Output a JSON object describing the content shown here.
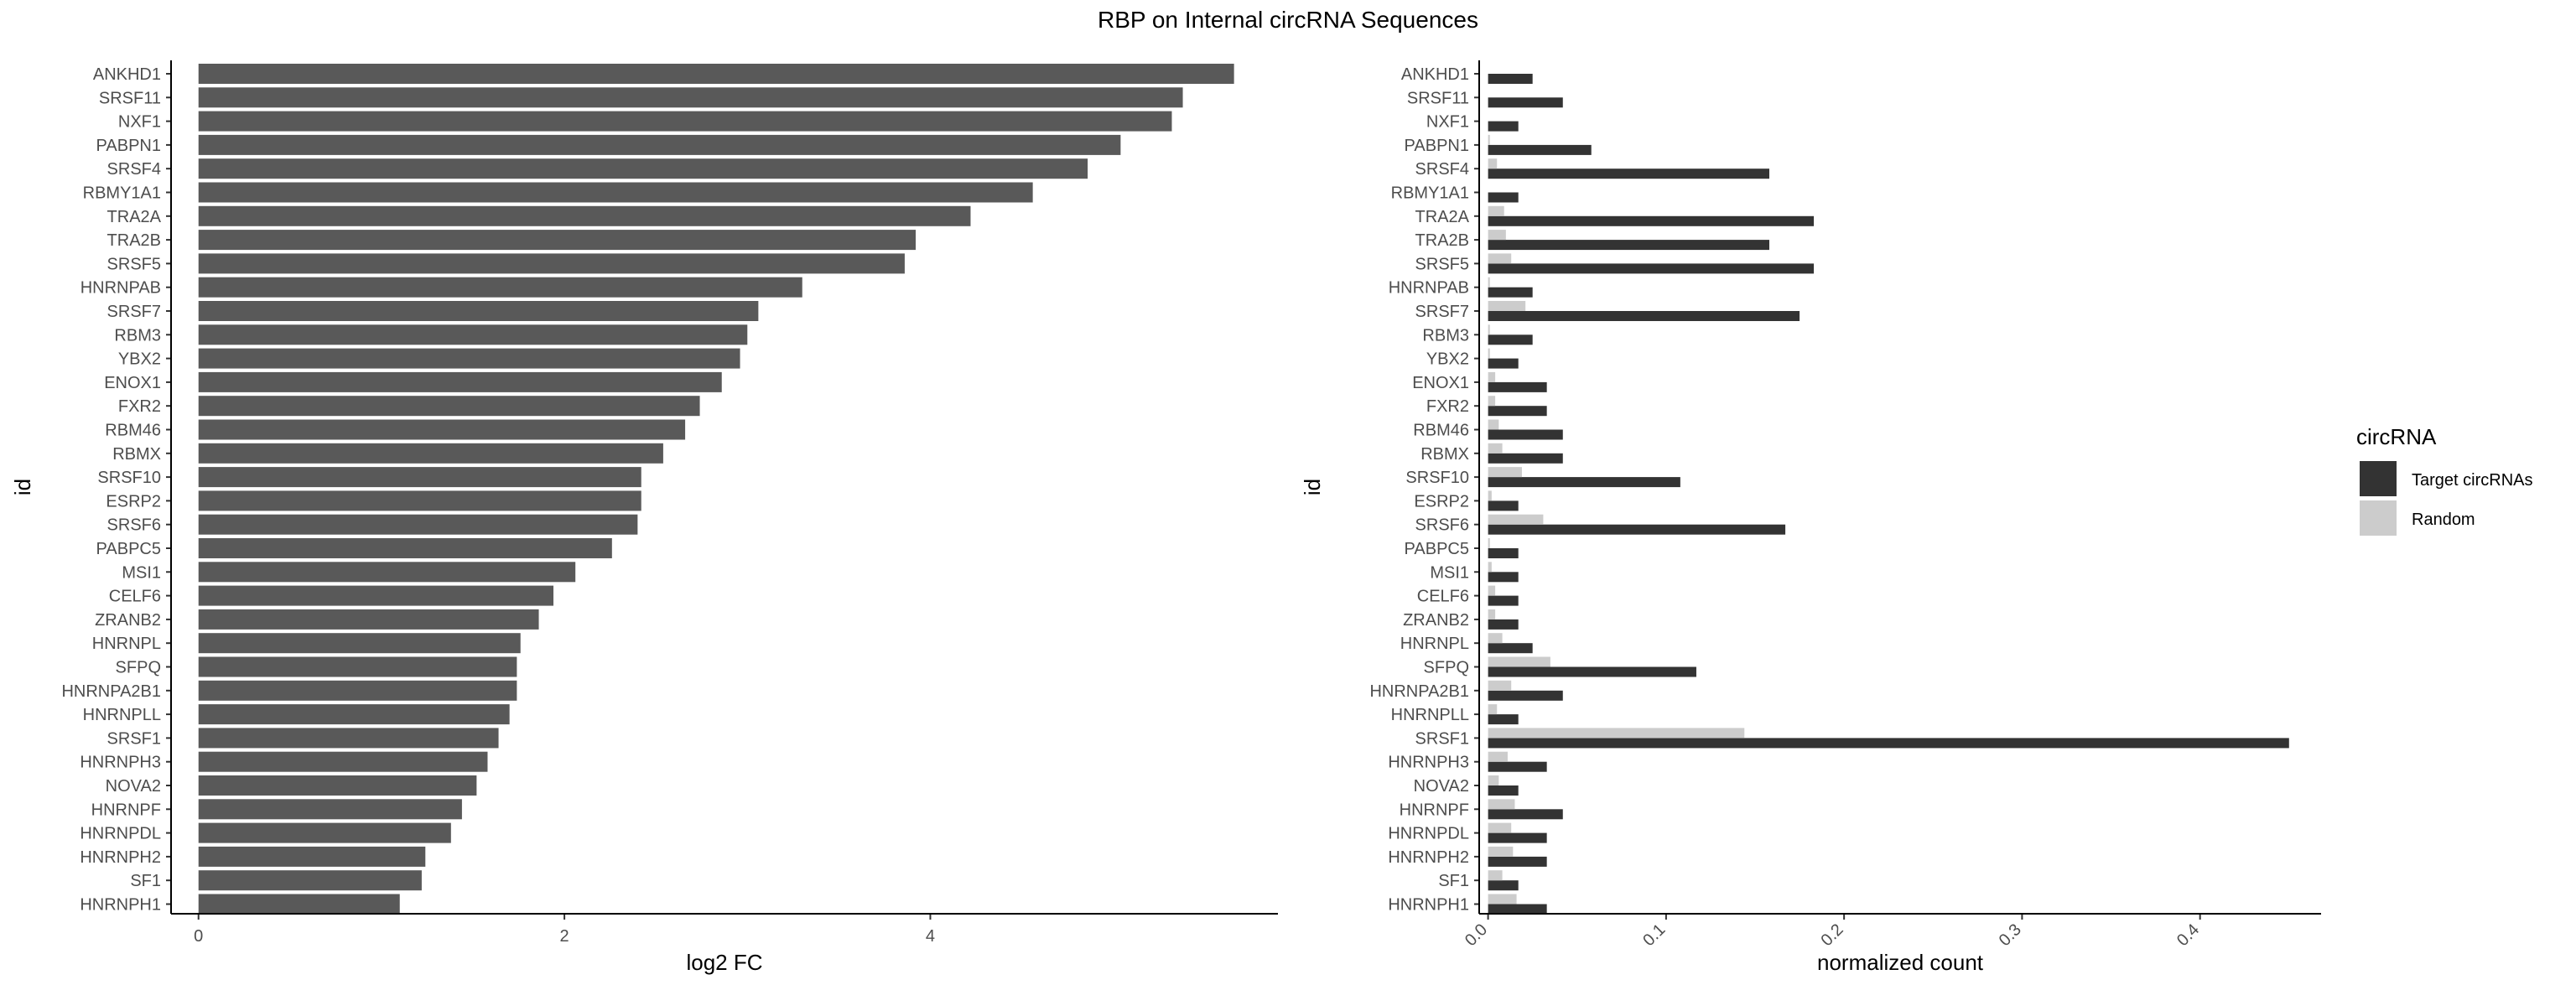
{
  "title": "RBP on Internal circRNA Sequences",
  "chart_data": [
    {
      "type": "bar",
      "orientation": "horizontal",
      "ylabel": "id",
      "xlabel": "log2 FC",
      "xlim": [
        -0.15,
        5.9
      ],
      "xticks": [
        0,
        2,
        4
      ],
      "categories": [
        "ANKHD1",
        "SRSF11",
        "NXF1",
        "PABPN1",
        "SRSF4",
        "RBMY1A1",
        "TRA2A",
        "TRA2B",
        "SRSF5",
        "HNRNPAB",
        "SRSF7",
        "RBM3",
        "YBX2",
        "ENOX1",
        "FXR2",
        "RBM46",
        "RBMX",
        "SRSF10",
        "ESRP2",
        "SRSF6",
        "PABPC5",
        "MSI1",
        "CELF6",
        "ZRANB2",
        "HNRNPL",
        "SFPQ",
        "HNRNPA2B1",
        "HNRNPLL",
        "SRSF1",
        "HNRNPH3",
        "NOVA2",
        "HNRNPF",
        "HNRNPDL",
        "HNRNPH2",
        "SF1",
        "HNRNPH1"
      ],
      "values": [
        5.66,
        5.38,
        5.32,
        5.04,
        4.86,
        4.56,
        4.22,
        3.92,
        3.86,
        3.3,
        3.06,
        3.0,
        2.96,
        2.86,
        2.74,
        2.66,
        2.54,
        2.42,
        2.42,
        2.4,
        2.26,
        2.06,
        1.94,
        1.86,
        1.76,
        1.74,
        1.74,
        1.7,
        1.64,
        1.58,
        1.52,
        1.44,
        1.38,
        1.24,
        1.22,
        1.1
      ],
      "bar_color": "#595959"
    },
    {
      "type": "bar",
      "orientation": "horizontal",
      "grouped": true,
      "ylabel": "id",
      "xlabel": "normalized count",
      "xlim": [
        -0.005,
        0.468
      ],
      "xticks": [
        0.0,
        0.1,
        0.2,
        0.3,
        0.4
      ],
      "xtick_labels": [
        "0.0",
        "0.1",
        "0.2",
        "0.3",
        "0.4"
      ],
      "categories": [
        "ANKHD1",
        "SRSF11",
        "NXF1",
        "PABPN1",
        "SRSF4",
        "RBMY1A1",
        "TRA2A",
        "TRA2B",
        "SRSF5",
        "HNRNPAB",
        "SRSF7",
        "RBM3",
        "YBX2",
        "ENOX1",
        "FXR2",
        "RBM46",
        "RBMX",
        "SRSF10",
        "ESRP2",
        "SRSF6",
        "PABPC5",
        "MSI1",
        "CELF6",
        "ZRANB2",
        "HNRNPL",
        "SFPQ",
        "HNRNPA2B1",
        "HNRNPLL",
        "SRSF1",
        "HNRNPH3",
        "NOVA2",
        "HNRNPF",
        "HNRNPDL",
        "HNRNPH2",
        "SF1",
        "HNRNPH1"
      ],
      "series": [
        {
          "name": "Target circRNAs",
          "color": "#333333",
          "values": [
            0.025,
            0.042,
            0.017,
            0.058,
            0.158,
            0.017,
            0.183,
            0.158,
            0.183,
            0.025,
            0.175,
            0.025,
            0.017,
            0.033,
            0.033,
            0.042,
            0.042,
            0.108,
            0.017,
            0.167,
            0.017,
            0.017,
            0.017,
            0.017,
            0.025,
            0.117,
            0.042,
            0.017,
            0.45,
            0.033,
            0.017,
            0.042,
            0.033,
            0.033,
            0.017,
            0.033
          ]
        },
        {
          "name": "Random",
          "color": "#cccccc",
          "values": [
            0.0,
            0.0,
            0.0,
            0.001,
            0.005,
            0.0,
            0.009,
            0.01,
            0.013,
            0.001,
            0.021,
            0.001,
            0.001,
            0.004,
            0.004,
            0.006,
            0.008,
            0.019,
            0.002,
            0.031,
            0.001,
            0.002,
            0.004,
            0.004,
            0.008,
            0.035,
            0.013,
            0.005,
            0.144,
            0.011,
            0.006,
            0.015,
            0.013,
            0.014,
            0.008,
            0.016
          ]
        }
      ],
      "legend": {
        "title": "circRNA",
        "position": "right"
      }
    }
  ]
}
